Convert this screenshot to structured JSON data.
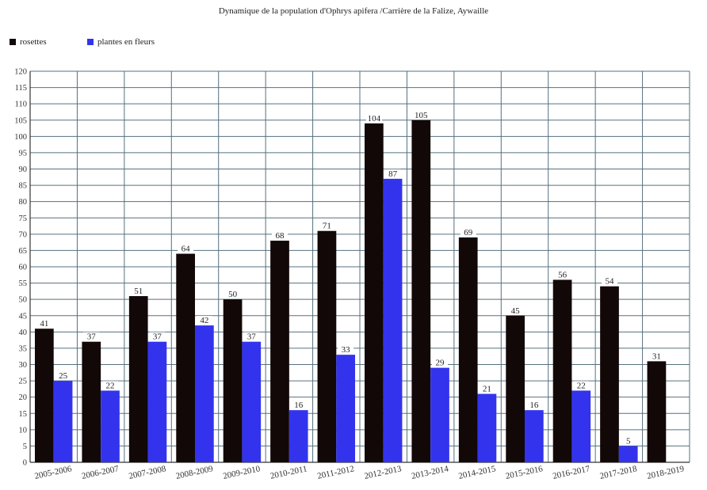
{
  "chart_data": {
    "type": "bar",
    "title": "Dynamique de la population d'Ophrys apifera /Carrière de la Falize, Aywaille",
    "categories": [
      "2005-2006",
      "2006-2007",
      "2007-2008",
      "2008-2009",
      "2009-2010",
      "2010-2011",
      "2011-2012",
      "2012-2013",
      "2013-2014",
      "2014-2015",
      "2015-2016",
      "2016-2017",
      "2017-2018",
      "2018-2019"
    ],
    "series": [
      {
        "name": "rosettes",
        "color": "#120808",
        "values": [
          41,
          37,
          51,
          64,
          50,
          68,
          71,
          104,
          105,
          69,
          45,
          56,
          54,
          31
        ]
      },
      {
        "name": "plantes en fleurs",
        "color": "#3333ee",
        "values": [
          25,
          22,
          37,
          42,
          37,
          16,
          33,
          87,
          29,
          21,
          16,
          22,
          5,
          null
        ]
      }
    ],
    "ylim": [
      0,
      120
    ],
    "ytick_step": 5,
    "grid": true,
    "legend_position": "top-left",
    "xlabel": "",
    "ylabel": ""
  }
}
